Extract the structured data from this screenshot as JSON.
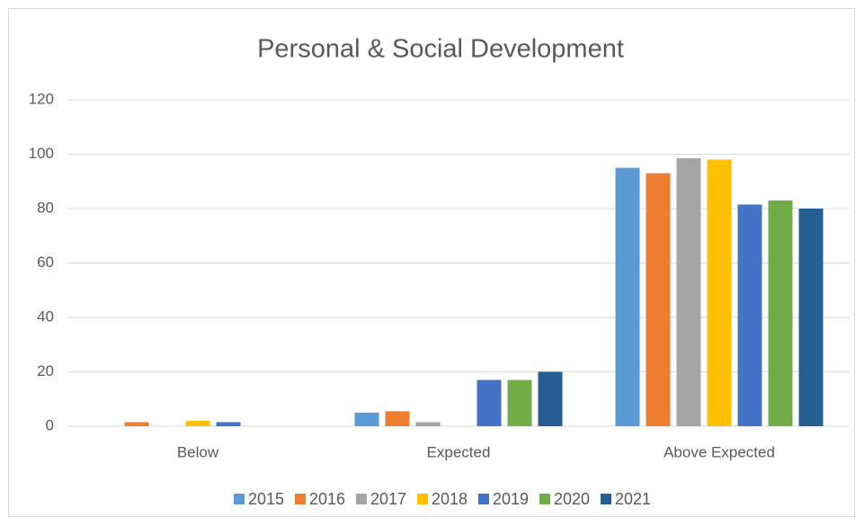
{
  "chart_data": {
    "type": "bar",
    "title": "Personal & Social Development",
    "categories": [
      "Below",
      "Expected",
      "Above Expected"
    ],
    "series": [
      {
        "name": "2015",
        "color": "#5b9bd5",
        "values": [
          0,
          5,
          95
        ]
      },
      {
        "name": "2016",
        "color": "#ed7d31",
        "values": [
          1.5,
          5.5,
          93
        ]
      },
      {
        "name": "2017",
        "color": "#a5a5a5",
        "values": [
          0,
          1.5,
          98.5
        ]
      },
      {
        "name": "2018",
        "color": "#ffc000",
        "values": [
          2,
          0,
          98
        ]
      },
      {
        "name": "2019",
        "color": "#4472c4",
        "values": [
          1.5,
          17,
          81.5
        ]
      },
      {
        "name": "2020",
        "color": "#70ad47",
        "values": [
          0,
          17,
          83
        ]
      },
      {
        "name": "2021",
        "color": "#255e91",
        "values": [
          0,
          20,
          80
        ]
      }
    ],
    "ylim": [
      0,
      120
    ],
    "yticks": [
      0,
      20,
      40,
      60,
      80,
      100,
      120
    ],
    "grid": true,
    "legend": "bottom"
  }
}
